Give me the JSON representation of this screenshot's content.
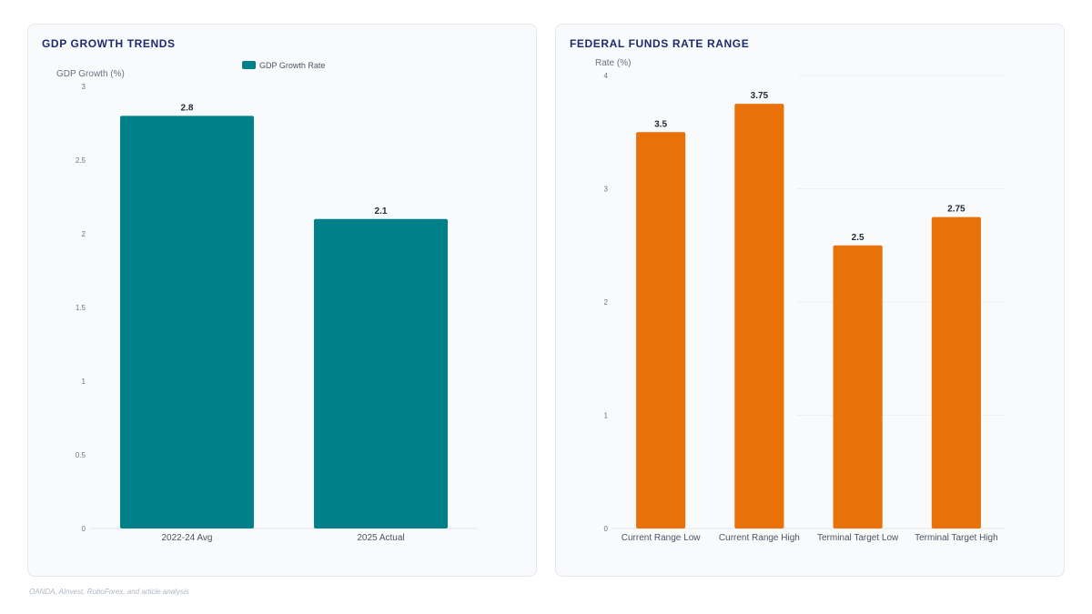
{
  "footer": {
    "source": "OANDA, AInvest, RoboForex, and article analysis"
  },
  "chart_data": [
    {
      "type": "bar",
      "title": "GDP GROWTH TRENDS",
      "ylabel": "GDP Growth (%)",
      "xlabel": "",
      "categories": [
        "2022-24 Avg",
        "2025 Actual"
      ],
      "series": [
        {
          "name": "GDP Growth Rate",
          "values": [
            2.8,
            2.1
          ]
        }
      ],
      "ylim": [
        0,
        3
      ],
      "yticks": [
        0,
        0.5,
        1,
        1.5,
        2,
        2.5,
        3
      ],
      "data_labels": true,
      "grid": false,
      "legend": "top-center",
      "colors": [
        "#00818a"
      ]
    },
    {
      "type": "bar",
      "title": "FEDERAL FUNDS RATE RANGE",
      "ylabel": "Rate (%)",
      "xlabel": "",
      "categories": [
        "Current Range Low",
        "Current Range High",
        "Terminal Target Low",
        "Terminal Target High"
      ],
      "series": [
        {
          "values": [
            3.5,
            3.75,
            2.5,
            2.75
          ]
        }
      ],
      "ylim": [
        0,
        4
      ],
      "yticks": [
        0,
        1,
        2,
        3,
        4
      ],
      "data_labels": true,
      "grid": true,
      "legend": "none",
      "colors": [
        "#e8710a"
      ]
    }
  ]
}
